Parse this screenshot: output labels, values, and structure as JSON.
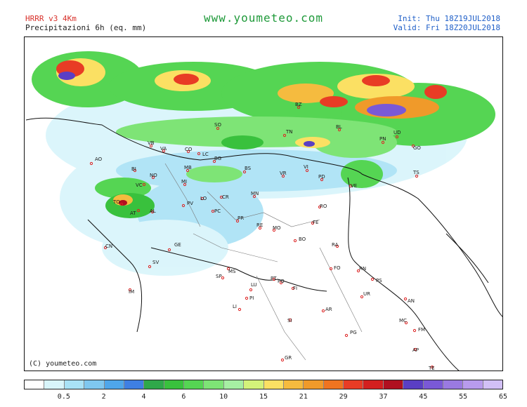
{
  "header": {
    "model": "HRRR v3 4Km",
    "field": "Precipitazioni 6h (eq. mm)",
    "site": "www.youmeteo.com",
    "init_label": "Init:",
    "init_value": "Thu 18Z19JUL2018",
    "valid_label": "Valid:",
    "valid_value": "Fri  18Z20JUL2018"
  },
  "map": {
    "copyright": "(C) youmeteo.com",
    "cities": [
      "AO",
      "VB",
      "VA",
      "CO",
      "LC",
      "SO",
      "BZ",
      "TN",
      "BL",
      "PN",
      "UD",
      "GO",
      "TS",
      "BI",
      "NO",
      "MB",
      "MI",
      "BG",
      "BS",
      "VR",
      "VI",
      "PD",
      "VE",
      "TO",
      "VC",
      "AT",
      "PV",
      "LO",
      "CR",
      "MN",
      "RO",
      "PC",
      "PR",
      "RE",
      "MO",
      "FE",
      "BO",
      "RA",
      "CN",
      "GE",
      "SV",
      "SP",
      "MS",
      "LU",
      "PT",
      "PO",
      "FI",
      "FO",
      "RN",
      "PS",
      "UR",
      "AN",
      "PI",
      "LI",
      "AR",
      "SI",
      "MC",
      "FM",
      "AP",
      "PG",
      "GR",
      "IM",
      "AL",
      "TE"
    ]
  },
  "legend": {
    "tick_labels": [
      "0.5",
      "2",
      "4",
      "6",
      "10",
      "15",
      "21",
      "29",
      "37",
      "45",
      "55",
      "65"
    ],
    "colors": [
      "#ffffff",
      "#d8f5fb",
      "#a9e2f6",
      "#7fc7ef",
      "#4fa6ea",
      "#3f7fe3",
      "#2fa84a",
      "#39c13d",
      "#55d553",
      "#7ee476",
      "#a6efa3",
      "#d3f27a",
      "#fbe063",
      "#f5bb3f",
      "#f09a2a",
      "#ef7420",
      "#e83c25",
      "#d31f1f",
      "#b01020",
      "#5a3fc4",
      "#7a59d6",
      "#9a7ae1",
      "#b89bed",
      "#d2c0f6"
    ]
  }
}
